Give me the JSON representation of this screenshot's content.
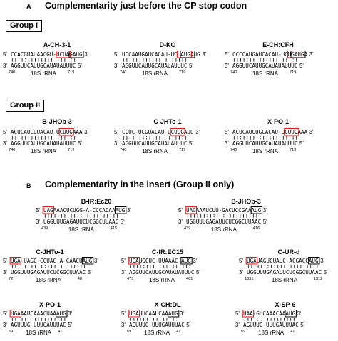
{
  "panel_a": {
    "label": "A",
    "title": "Complementarity just before the CP stop codon",
    "groups": [
      {
        "name": "Group I",
        "alignments": [
          {
            "name": "A-CH-3-1",
            "top": "CCACGUAUAACGU-UCUAGAUG",
            "bottom": "AGGUUCAUUGCAUAUAUUUC",
            "rrna": "18S rRNA",
            "num_left": "740",
            "num_right": "719",
            "red": [
              14,
              17
            ],
            "black": [
              18,
              21
            ]
          },
          {
            "name": "D-KO",
            "top": "UCCAAUGAUCACAU-UCUAUGAUG",
            "bottom": "AGGUUCAUUGCAUAUAUUUC",
            "rrna": "18S rRNA",
            "num_left": "740",
            "num_right": "719",
            "red": [
              17,
              20
            ],
            "black": [
              18,
              21
            ]
          },
          {
            "name": "E-CH:CFH",
            "top": "CCCCAUGAUCACAU-UCUGAUGA",
            "bottom": "AGGUUCAUUGCAUAUAUUUC",
            "rrna": "18S rRNA",
            "num_left": "740",
            "num_right": "719",
            "red": [
              17,
              20
            ],
            "black": [
              18,
              21
            ]
          }
        ]
      },
      {
        "name": "Group II",
        "alignments": [
          {
            "name": "B-JHOb-3",
            "top": "ACUCAUCUUACAU-UCUUGAAA",
            "bottom": "AGGUUCAUUGCAUAUAUUUC",
            "rrna": "18S rRNA",
            "num_left": "740",
            "num_right": "719",
            "red": [
              15,
              18
            ],
            "black": null
          },
          {
            "name": "C-JHTo-1",
            "top": "CCUC-UCGUACAU-UCUUGAUU",
            "bottom": "AGGUUCAUUGCAUAUAUUUC",
            "rrna": "18S rRNA",
            "num_left": "740",
            "num_right": "719",
            "red": [
              15,
              18
            ],
            "black": null
          },
          {
            "name": "X-PO-1",
            "top": "ACUCAUCUGCACAU-UCUUGAAA",
            "bottom": "AGGUUCAUUGCAUAUAUUUC",
            "rrna": "18S rRNA",
            "num_left": "740",
            "num_right": "719",
            "red": [
              16,
              19
            ],
            "black": null
          }
        ]
      }
    ]
  },
  "panel_b": {
    "label": "B",
    "title": "Complementarity in the insert (Group II only)",
    "rows": [
      [
        {
          "name": "B-IR:Ec20",
          "top": "UAGAAACUCUGG-A-CCCACAAAUG",
          "bottom": "UGGUUUGAGAUUCUCGGCUUAAC",
          "rrna": "18S rRNA",
          "num_left": "439",
          "num_right": "415",
          "red": [
            0,
            2
          ],
          "black": [
            22,
            24
          ]
        },
        {
          "name": "B-JHOb-3",
          "top": "UAGAAAUCUU-GACUCCGAAAUG",
          "bottom": "UGGUUUGAGAUUCUCGGCUUAAC",
          "rrna": "18S rRNA",
          "num_left": "439",
          "num_right": "416",
          "red": [
            0,
            2
          ],
          "black": [
            20,
            22
          ]
        }
      ],
      [
        {
          "name": "C-JHTo-1",
          "top": "UGA-UAGC-CGUAC-A-CAACUAUG",
          "bottom": "UGGUUUGAGAUUCUCGGCUUAAC",
          "rrna": "18S rRNA",
          "num_left": "72",
          "num_right": "48",
          "red": [
            0,
            2
          ],
          "black": [
            22,
            24
          ]
        },
        {
          "name": "C-IR:EC15",
          "top": "UGAUGCUC-UUAAAC-AUG",
          "bottom": "AGGUUCAUUGCAUAUAUUUC",
          "rrna": "18S rRNA",
          "num_left": "479",
          "num_right": "461",
          "red": [
            0,
            2
          ],
          "black": [
            16,
            18
          ]
        },
        {
          "name": "C-UR-d",
          "top": "UGAUAGUCUAUC-ACGACCAUG",
          "bottom": "UGGUUUGAGAUUCUCGGCUUAAC",
          "rrna": "18S rRNA",
          "num_left": "1331",
          "num_right": "1311",
          "red": [
            0,
            2
          ],
          "black": [
            19,
            21
          ]
        }
      ],
      [
        {
          "name": "X-PO-1",
          "top": "UGAAAUCAAACUAAAUG",
          "bottom": "AGUUUG-UUUGAUUUAC",
          "rrna": "18S rRNA",
          "num_left": "59",
          "num_right": "41",
          "red": [
            0,
            2
          ],
          "black": [
            14,
            16
          ]
        },
        {
          "name": "X-CH:DL",
          "top": "UGAUUCAAUCAAAUG",
          "bottom": "AGUUUG-UUUGAUUUAC",
          "rrna": "18S rRNA",
          "num_left": "59",
          "num_right": "41",
          "red": [
            0,
            2
          ],
          "black": [
            12,
            14
          ]
        },
        {
          "name": "X-SP-6",
          "top": "UAA-GUCAAACAAAUG",
          "bottom": "AGUUUG-UUUGAUUUAC",
          "rrna": "18S rRNA",
          "num_left": "59",
          "num_right": "41",
          "red": [
            0,
            2
          ],
          "black": [
            13,
            15
          ]
        }
      ]
    ]
  },
  "strand_labels": {
    "five": "5'",
    "three": "3'"
  },
  "colors": {
    "red_box": "#e02020",
    "black_box": "#000000",
    "text": "#000000"
  }
}
